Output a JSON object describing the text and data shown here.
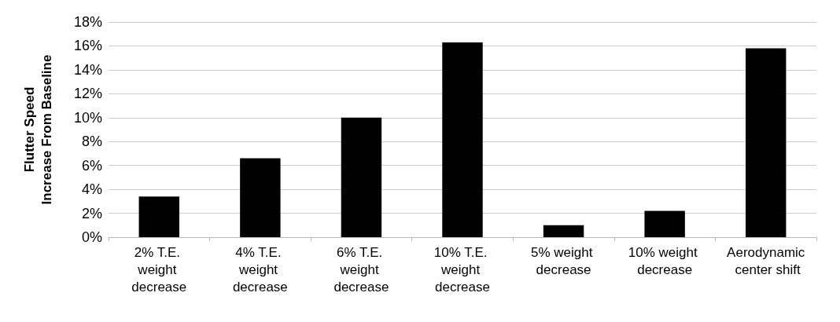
{
  "chart_data": {
    "type": "bar",
    "ylabel": "Flutter Speed\nIncrease From Baseline",
    "categories": [
      "2% T.E. weight decrease",
      "4% T.E. weight decrease",
      "6% T.E. weight decrease",
      "10% T.E. weight decrease",
      "5% weight decrease",
      "10% weight decrease",
      "Aerodynamic center shift"
    ],
    "values": [
      3.4,
      6.6,
      10.0,
      16.3,
      1.0,
      2.2,
      15.8
    ],
    "color": "#000000",
    "ylim": [
      0,
      18
    ],
    "yticks": [
      {
        "value": 0,
        "label": "0%"
      },
      {
        "value": 2,
        "label": "2%"
      },
      {
        "value": 4,
        "label": "4%"
      },
      {
        "value": 6,
        "label": "6%"
      },
      {
        "value": 8,
        "label": "8%"
      },
      {
        "value": 10,
        "label": "10%"
      },
      {
        "value": 12,
        "label": "12%"
      },
      {
        "value": 14,
        "label": "14%"
      },
      {
        "value": 16,
        "label": "16%"
      },
      {
        "value": 18,
        "label": "18%"
      }
    ],
    "grid": "y"
  }
}
